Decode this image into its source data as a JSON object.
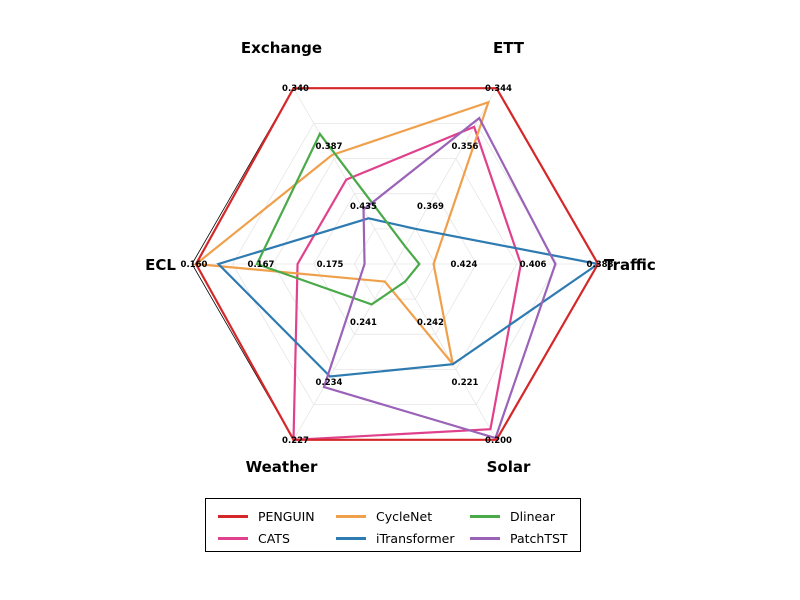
{
  "chart_data": {
    "type": "radar",
    "axes": [
      "Exchange",
      "ETT",
      "Traffic",
      "Solar",
      "Weather",
      "ECL"
    ],
    "series": [
      {
        "name": "PENGUIN",
        "color": "#d62728",
        "scores": [
          1.0,
          1.0,
          1.0,
          1.0,
          1.0,
          0.98
        ]
      },
      {
        "name": "CATS",
        "color": "#e0418c",
        "scores": [
          0.48,
          0.78,
          0.62,
          0.94,
          1.0,
          0.48
        ]
      },
      {
        "name": "CycleNet",
        "color": "#f0a04b",
        "scores": [
          0.62,
          0.92,
          0.19,
          0.57,
          0.1,
          0.98
        ]
      },
      {
        "name": "iTransformer",
        "color": "#2e7bb1",
        "scores": [
          0.26,
          0.2,
          1.0,
          0.57,
          0.64,
          0.87
        ]
      },
      {
        "name": "Dlinear",
        "color": "#4aaa4a",
        "scores": [
          0.74,
          0.1,
          0.12,
          0.1,
          0.23,
          0.68
        ]
      },
      {
        "name": "PatchTST",
        "color": "#9a63b8",
        "scores": [
          0.31,
          0.83,
          0.79,
          0.99,
          0.7,
          0.15
        ]
      }
    ],
    "tick_labels": [
      {
        "axis": 0,
        "level": 1.0,
        "text": "0.340"
      },
      {
        "axis": 0,
        "level": 0.67,
        "text": "0.387"
      },
      {
        "axis": 0,
        "level": 0.33,
        "text": "0.435"
      },
      {
        "axis": 1,
        "level": 1.0,
        "text": "0.344"
      },
      {
        "axis": 1,
        "level": 0.67,
        "text": "0.356"
      },
      {
        "axis": 1,
        "level": 0.33,
        "text": "0.369"
      },
      {
        "axis": 2,
        "level": 1.0,
        "text": "0.388"
      },
      {
        "axis": 2,
        "level": 0.67,
        "text": "0.406"
      },
      {
        "axis": 2,
        "level": 0.33,
        "text": "0.424"
      },
      {
        "axis": 3,
        "level": 1.0,
        "text": "0.200"
      },
      {
        "axis": 3,
        "level": 0.67,
        "text": "0.221"
      },
      {
        "axis": 3,
        "level": 0.33,
        "text": "0.242"
      },
      {
        "axis": 4,
        "level": 1.0,
        "text": "0.227"
      },
      {
        "axis": 4,
        "level": 0.67,
        "text": "0.234"
      },
      {
        "axis": 4,
        "level": 0.33,
        "text": "0.241"
      },
      {
        "axis": 5,
        "level": 1.0,
        "text": "0.160"
      },
      {
        "axis": 5,
        "level": 0.67,
        "text": "0.167"
      },
      {
        "axis": 5,
        "level": 0.33,
        "text": "0.175"
      }
    ],
    "legend": {
      "position": "bottom",
      "columns": 3
    },
    "grid": true
  }
}
